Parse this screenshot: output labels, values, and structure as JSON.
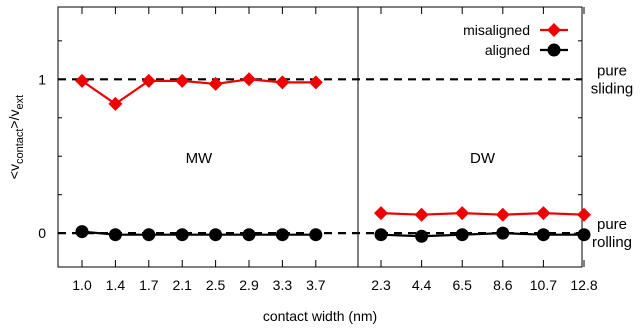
{
  "chart_data": {
    "type": "line",
    "xlabel": "contact width (nm)",
    "ylabel_main": "<v",
    "ylabel_sub1": "contact",
    "ylabel_mid": ">/v",
    "ylabel_sub2": "ext",
    "ylim": [
      -0.22,
      1.47
    ],
    "yticks": [
      0,
      1
    ],
    "grid": false,
    "legend_position": "top-right",
    "reference_lines": [
      {
        "y": 1,
        "label_lines": [
          "pure",
          "sliding"
        ]
      },
      {
        "y": 0,
        "label_lines": [
          "pure",
          "rolling"
        ]
      }
    ],
    "panels": [
      {
        "label": "MW",
        "categories": [
          "1.0",
          "1.4",
          "1.7",
          "2.1",
          "2.5",
          "2.9",
          "3.3",
          "3.7"
        ],
        "series": [
          {
            "name": "misaligned",
            "color": "#ee0000",
            "marker": "diamond",
            "values": [
              0.99,
              0.84,
              0.99,
              0.99,
              0.97,
              1.0,
              0.98,
              0.98
            ]
          },
          {
            "name": "aligned",
            "color": "#000000",
            "marker": "circle",
            "values": [
              0.01,
              -0.01,
              -0.01,
              -0.01,
              -0.01,
              -0.01,
              -0.01,
              -0.01
            ]
          }
        ]
      },
      {
        "label": "DW",
        "categories": [
          "2.3",
          "4.4",
          "6.5",
          "8.6",
          "10.7",
          "12.8"
        ],
        "series": [
          {
            "name": "misaligned",
            "color": "#ee0000",
            "marker": "diamond",
            "values": [
              0.13,
              0.12,
              0.13,
              0.12,
              0.13,
              0.12
            ]
          },
          {
            "name": "aligned",
            "color": "#000000",
            "marker": "circle",
            "values": [
              -0.01,
              -0.02,
              -0.01,
              0.0,
              -0.01,
              -0.01
            ]
          }
        ]
      }
    ]
  }
}
